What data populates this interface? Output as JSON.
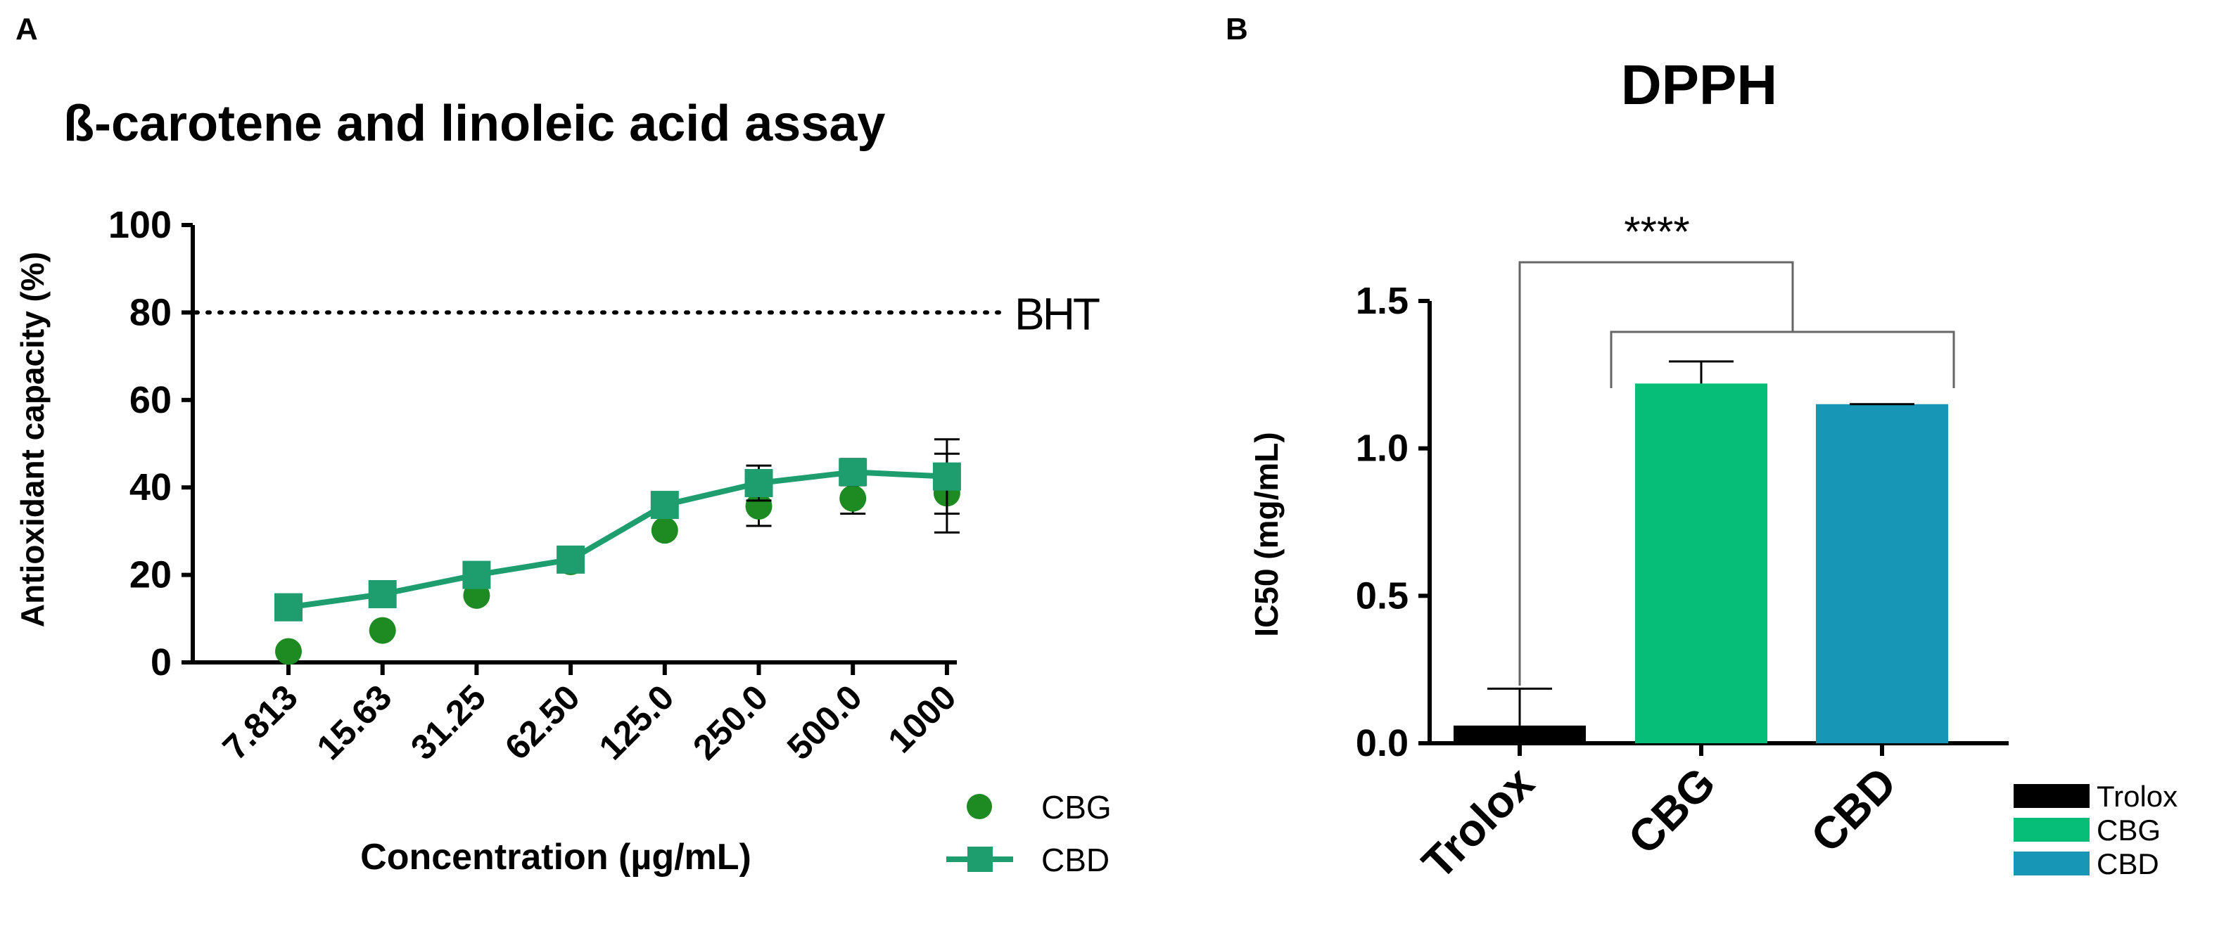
{
  "chart_data": [
    {
      "panel": "A",
      "type": "line",
      "title": "ß-carotene and linoleic acid assay",
      "xlabel": "Concentration (µg/mL)",
      "ylabel": "Antioxidant capacity (%)",
      "ylim": [
        0,
        100
      ],
      "yticks": [
        "0",
        "20",
        "40",
        "60",
        "80",
        "100"
      ],
      "categories": [
        "7.813",
        "15.63",
        "31.25",
        "62.50",
        "125.0",
        "250.0",
        "500.0",
        "1000"
      ],
      "reference_line": {
        "label": "BHT",
        "value": 80,
        "style": "dotted"
      },
      "series": [
        {
          "name": "CBG",
          "marker": "circle",
          "connected": false,
          "color": "#1d8a22",
          "values": [
            2.5,
            7.3,
            15.3,
            23.0,
            30.2,
            35.7,
            37.5,
            38.7
          ],
          "errors": [
            0,
            0,
            0,
            0,
            0,
            4.5,
            3.5,
            9.0
          ]
        },
        {
          "name": "CBD",
          "marker": "square",
          "connected": true,
          "color": "#1e9e6e",
          "values": [
            12.6,
            15.6,
            20.0,
            23.5,
            36.0,
            41.0,
            43.5,
            42.5
          ],
          "errors": [
            0,
            0,
            0,
            0,
            0,
            4.0,
            3.0,
            8.5
          ]
        }
      ],
      "legend": [
        "CBG",
        "CBD"
      ],
      "legend_position": "bottom-right"
    },
    {
      "panel": "B",
      "type": "bar",
      "title": "DPPH",
      "xlabel": "",
      "ylabel": "IC50 (mg/mL)",
      "ylim": [
        0,
        1.5
      ],
      "yticks": [
        "0.0",
        "0.5",
        "1.0",
        "1.5"
      ],
      "categories": [
        "Trolox",
        "CBG",
        "CBD"
      ],
      "values": [
        0.06,
        1.22,
        1.15
      ],
      "errors": [
        0.125,
        0.075,
        0.0
      ],
      "colors": [
        "#000000",
        "#06be78",
        "#1797b5"
      ],
      "significance": "****",
      "legend": [
        "Trolox",
        "CBG",
        "CBD"
      ],
      "legend_position": "right"
    }
  ]
}
